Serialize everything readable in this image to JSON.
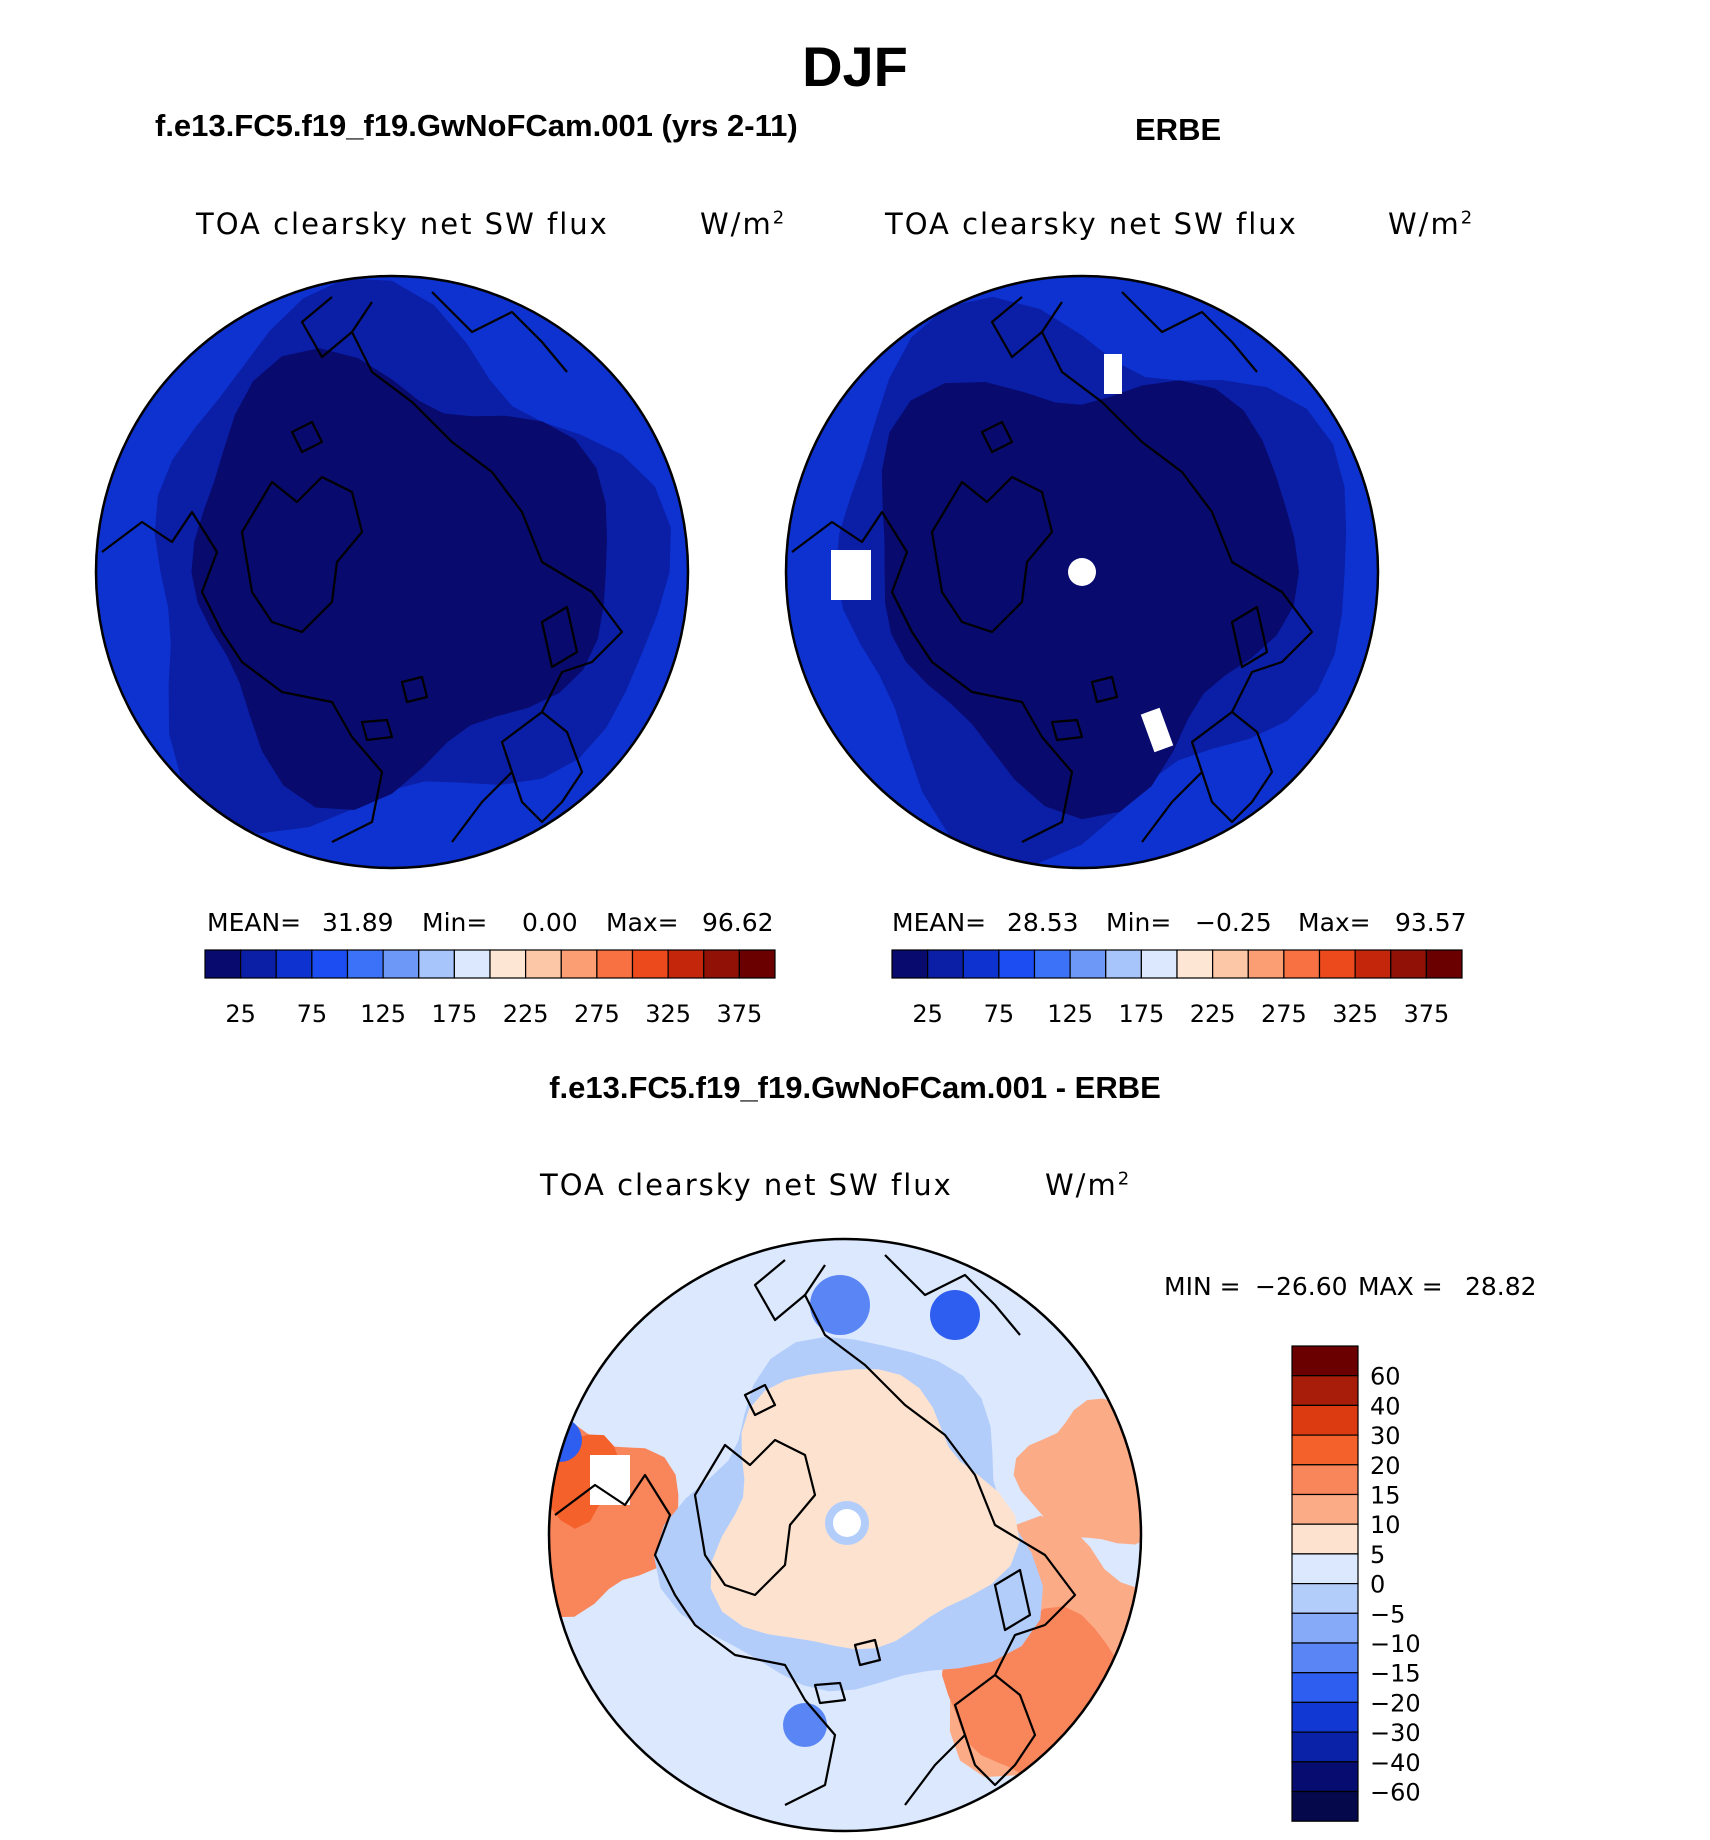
{
  "title": "DJF",
  "panels": [
    {
      "subtitle": "f.e13.FC5.f19_f19.GwNoFCam.001 (yrs 2-11)",
      "variable": "TOA clearsky net SW flux",
      "units": "W/m",
      "units_sup": "2",
      "stats": {
        "mean_label": "MEAN=",
        "mean": "31.89",
        "min_label": "Min=",
        "min": "0.00",
        "max_label": "Max=",
        "max": "96.62"
      }
    },
    {
      "subtitle": "ERBE",
      "variable": "TOA clearsky net SW flux",
      "units": "W/m",
      "units_sup": "2",
      "stats": {
        "mean_label": "MEAN=",
        "mean": "28.53",
        "min_label": "Min=",
        "min": "−0.25",
        "max_label": "Max=",
        "max": "93.57"
      }
    },
    {
      "subtitle": "f.e13.FC5.f19_f19.GwNoFCam.001 - ERBE",
      "variable": "TOA clearsky net SW flux",
      "units": "W/m",
      "units_sup": "2",
      "stats": {
        "min_label": "MIN =",
        "min": "−26.60",
        "max_label": "MAX =",
        "max": "28.82"
      }
    }
  ],
  "chart_data": [
    {
      "type": "heatmap",
      "projection": "north polar stereographic",
      "colorbar_ticks": [
        "25",
        "75",
        "125",
        "175",
        "225",
        "275",
        "325",
        "375"
      ],
      "colors": [
        "#080a6e",
        "#0a1fa6",
        "#0e32d0",
        "#1c4df2",
        "#3c72f7",
        "#6d98f8",
        "#a7c4fb",
        "#dbe8fd",
        "#fde6d3",
        "#fcc7a7",
        "#fc9e74",
        "#f87143",
        "#ec4a1d",
        "#c4260b",
        "#911107",
        "#6b0000"
      ],
      "field_summary": "TOA clearsky net SW flux 0-25 near the pole, 25-75 at lower latitudes",
      "mean": 31.89,
      "min": 0.0,
      "max": 96.62
    },
    {
      "type": "heatmap",
      "projection": "north polar stereographic",
      "colorbar_ticks": [
        "25",
        "75",
        "125",
        "175",
        "225",
        "275",
        "325",
        "375"
      ],
      "colors": [
        "#080a6e",
        "#0a1fa6",
        "#0e32d0",
        "#1c4df2",
        "#3c72f7",
        "#6d98f8",
        "#a7c4fb",
        "#dbe8fd",
        "#fde6d3",
        "#fcc7a7",
        "#fc9e74",
        "#f87143",
        "#ec4a1d",
        "#c4260b",
        "#911107",
        "#6b0000"
      ],
      "field_summary": "TOA clearsky net SW flux 0-25 near the pole, 25-75 at lower latitudes, missing data patches shown white",
      "mean": 28.53,
      "min": -0.25,
      "max": 93.57
    },
    {
      "type": "heatmap",
      "projection": "north polar stereographic",
      "colorbar_ticks": [
        "60",
        "40",
        "30",
        "20",
        "15",
        "10",
        "5",
        "0",
        "−5",
        "−10",
        "−15",
        "−20",
        "−30",
        "−40",
        "−60"
      ],
      "colors": [
        "#6b0000",
        "#a81d09",
        "#dc3a10",
        "#f5612b",
        "#f9855a",
        "#fcab87",
        "#fde3cf",
        "#dbe8fd",
        "#b3cdfb",
        "#86aaf8",
        "#5a86f5",
        "#2e5ef0",
        "#1238d4",
        "#0a22a8",
        "#070d70",
        "#05084a"
      ],
      "field_summary": "difference field: warm values (0 to 30) over lower-latitude oceans, near-zero to slightly positive over polar region, negative bands near coasts",
      "min": -26.6,
      "max": 28.82
    }
  ]
}
